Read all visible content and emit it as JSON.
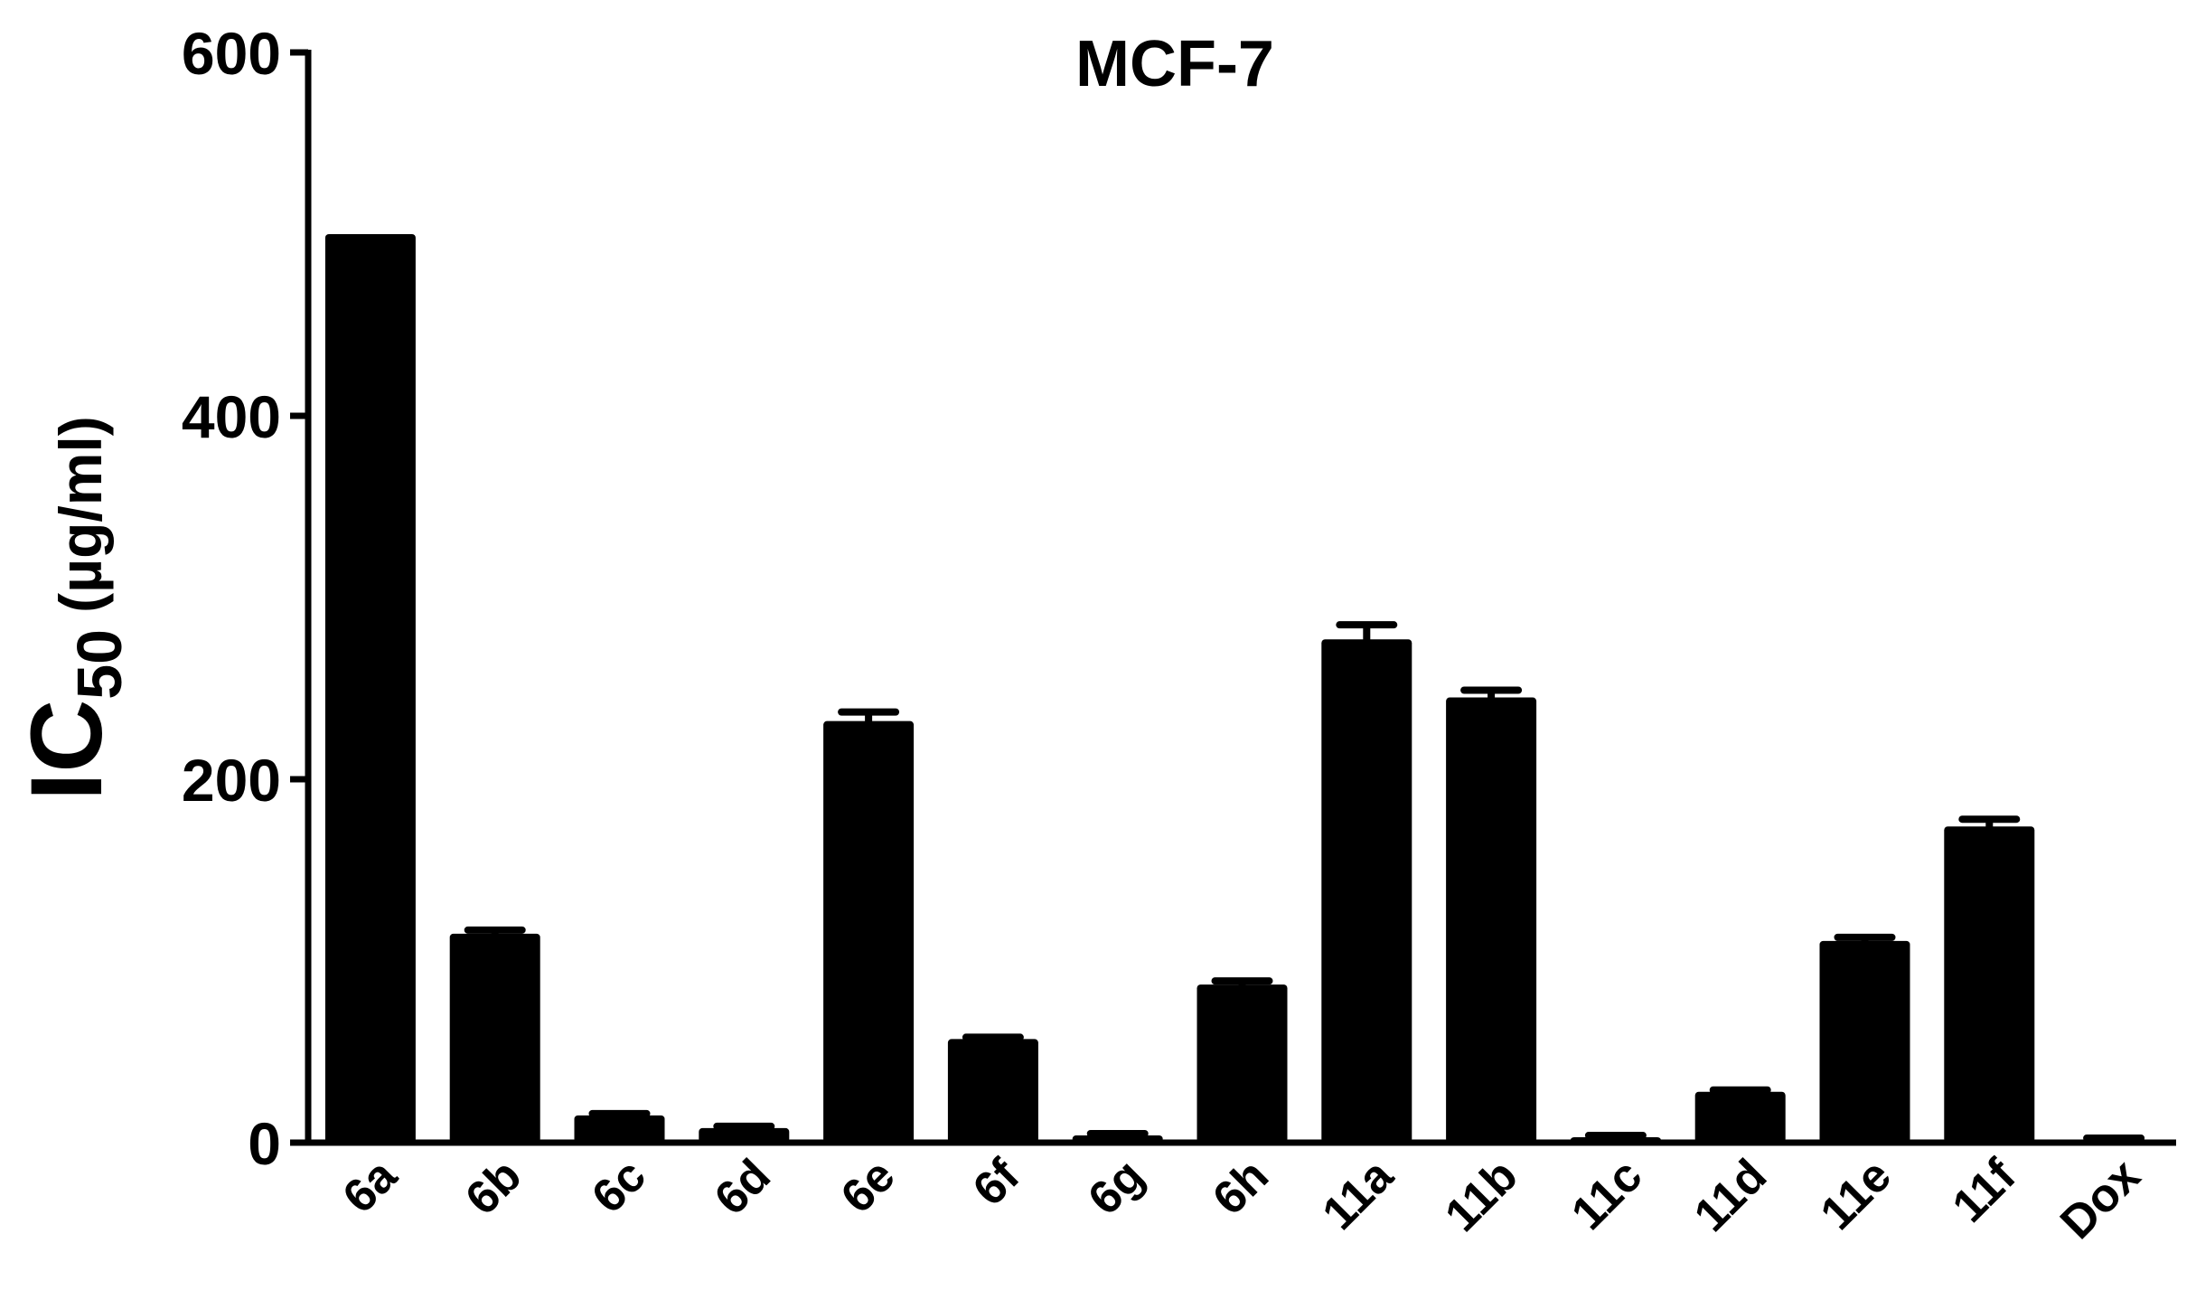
{
  "chart_data": {
    "type": "bar",
    "title": "MCF-7",
    "ylabel": {
      "main": "IC",
      "sub": "50",
      "unit": "(µg/ml)"
    },
    "categories": [
      "6a",
      "6b",
      "6c",
      "6d",
      "6e",
      "6f",
      "6g",
      "6h",
      "11a",
      "11b",
      "11c",
      "11d",
      "11e",
      "11f",
      "Dox"
    ],
    "values": [
      500,
      115,
      15,
      8,
      232,
      57,
      4,
      87,
      277,
      245,
      3,
      28,
      111,
      174,
      1.5
    ],
    "errors": [
      0,
      2,
      1,
      1,
      5,
      1,
      1,
      2,
      8,
      4,
      1,
      1,
      2,
      4,
      1
    ],
    "color": "#000000",
    "ylim": [
      0,
      600
    ],
    "yticks": [
      0,
      200,
      400,
      600
    ],
    "grid": false
  }
}
